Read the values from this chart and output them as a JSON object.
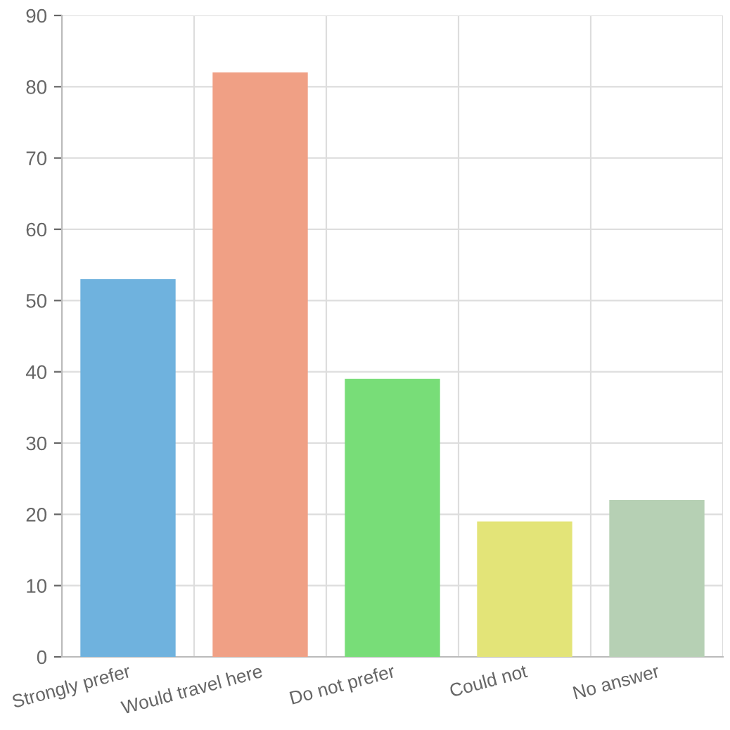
{
  "chart_data": {
    "type": "bar",
    "categories": [
      "Strongly prefer",
      "Would travel here",
      "Do not prefer",
      "Could not",
      "No answer"
    ],
    "values": [
      53,
      82,
      39,
      19,
      22
    ],
    "colors": [
      "#6fb2de",
      "#f0a085",
      "#78dd78",
      "#e3e478",
      "#b6d0b4"
    ],
    "ylim": [
      0,
      90
    ],
    "yticks": [
      0,
      10,
      20,
      30,
      40,
      50,
      60,
      70,
      80,
      90
    ],
    "grid": true
  }
}
